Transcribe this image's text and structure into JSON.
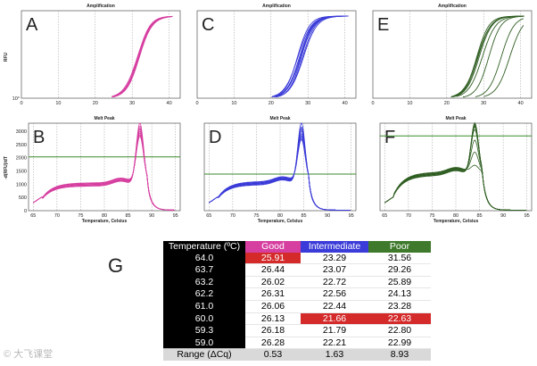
{
  "figure_label": "G",
  "watermark": "© 大飞课堂",
  "colors": {
    "good": "#d63fa0",
    "intermediate": "#3a3bd8",
    "poor": "#2f5e22",
    "threshold": "#3a8a2a"
  },
  "chart_data": [
    {
      "id": "A",
      "type": "line",
      "title": "Amplification",
      "letter": "A",
      "ylabel": "RFU",
      "yticks": [
        "10°"
      ],
      "xticks": [
        "0",
        "10",
        "20",
        "30",
        "40"
      ],
      "xlim": [
        0,
        43
      ],
      "ylim": [
        0,
        1
      ],
      "color": "#d63fa0",
      "series": [
        {
          "name": "64.0",
          "Cq": 25.91
        },
        {
          "name": "63.7",
          "Cq": 26.44
        },
        {
          "name": "63.2",
          "Cq": 26.02
        },
        {
          "name": "62.2",
          "Cq": 26.31
        },
        {
          "name": "61.0",
          "Cq": 26.06
        },
        {
          "name": "60.0",
          "Cq": 26.13
        },
        {
          "name": "59.3",
          "Cq": 26.18
        },
        {
          "name": "59.0",
          "Cq": 26.28
        }
      ]
    },
    {
      "id": "C",
      "type": "line",
      "title": "Amplification",
      "letter": "C",
      "xticks": [
        "0",
        "10",
        "20",
        "30",
        "40"
      ],
      "xlim": [
        0,
        43
      ],
      "ylim": [
        0,
        1
      ],
      "color": "#3a3bd8",
      "series": [
        {
          "name": "64.0",
          "Cq": 23.29
        },
        {
          "name": "63.7",
          "Cq": 23.07
        },
        {
          "name": "63.2",
          "Cq": 22.72
        },
        {
          "name": "62.2",
          "Cq": 22.56
        },
        {
          "name": "61.0",
          "Cq": 22.44
        },
        {
          "name": "60.0",
          "Cq": 21.66
        },
        {
          "name": "59.3",
          "Cq": 21.79
        },
        {
          "name": "59.0",
          "Cq": 22.21
        }
      ]
    },
    {
      "id": "E",
      "type": "line",
      "title": "Amplification",
      "letter": "E",
      "xticks": [
        "0",
        "10",
        "20",
        "30",
        "40"
      ],
      "xlim": [
        0,
        43
      ],
      "ylim": [
        0,
        1
      ],
      "color": "#2f5e22",
      "series": [
        {
          "name": "64.0",
          "Cq": 31.56
        },
        {
          "name": "63.7",
          "Cq": 29.26
        },
        {
          "name": "63.2",
          "Cq": 25.89
        },
        {
          "name": "62.2",
          "Cq": 24.13
        },
        {
          "name": "61.0",
          "Cq": 23.28
        },
        {
          "name": "60.0",
          "Cq": 22.63
        },
        {
          "name": "59.3",
          "Cq": 22.8
        },
        {
          "name": "59.0",
          "Cq": 22.99
        }
      ]
    },
    {
      "id": "B",
      "type": "line",
      "title": "Melt Peak",
      "letter": "B",
      "ylabel": "-d(RFU)/dT",
      "xlabel": "Temperature, Celsius",
      "yticks": [
        "0",
        "500",
        "1000",
        "1500",
        "2000",
        "2500",
        "3000"
      ],
      "xticks": [
        "65",
        "70",
        "75",
        "80",
        "85",
        "90",
        "95"
      ],
      "xlim": [
        64,
        96
      ],
      "ylim": [
        0,
        3300
      ],
      "threshold": 2030,
      "color": "#d63fa0",
      "peak_temp": 87.5,
      "plateau": 800,
      "peaks": [
        3100,
        2980,
        2900,
        2850,
        2780,
        2720,
        2650,
        2600
      ]
    },
    {
      "id": "D",
      "type": "line",
      "title": "Melt Peak",
      "letter": "D",
      "xlabel": "Temperature, Celsius",
      "xticks": [
        "65",
        "70",
        "75",
        "80",
        "85",
        "90",
        "95"
      ],
      "xlim": [
        64,
        96
      ],
      "ylim": [
        0,
        3300
      ],
      "threshold": 1380,
      "color": "#3a3bd8",
      "peak_temp": 84.5,
      "plateau": 850,
      "peaks": [
        3100,
        2950,
        2880,
        2800,
        2700,
        2620,
        2550,
        2480
      ]
    },
    {
      "id": "F",
      "type": "line",
      "title": "Melt Peak",
      "letter": "F",
      "xlabel": "Temperature, Celsius",
      "xticks": [
        "65",
        "70",
        "75",
        "80",
        "85",
        "90",
        "95"
      ],
      "xlim": [
        64,
        96
      ],
      "ylim": [
        0,
        3300
      ],
      "threshold": 2820,
      "color": "#2f5e22",
      "peak_temp": 84.0,
      "plateau": 1200,
      "peaks": [
        3100,
        3050,
        3000,
        2950,
        2850,
        2450,
        2000,
        1500
      ]
    }
  ],
  "table": {
    "headers": [
      "Temperature (ºC)",
      "Good",
      "Intermediate",
      "Poor"
    ],
    "rows": [
      {
        "temp": "64.0",
        "good": "25.91",
        "intermediate": "23.29",
        "poor": "31.56"
      },
      {
        "temp": "63.7",
        "good": "26.44",
        "intermediate": "23.07",
        "poor": "29.26"
      },
      {
        "temp": "63.2",
        "good": "26.02",
        "intermediate": "22.72",
        "poor": "25.89"
      },
      {
        "temp": "62.2",
        "good": "26.31",
        "intermediate": "22.56",
        "poor": "24.13"
      },
      {
        "temp": "61.0",
        "good": "26.06",
        "intermediate": "22.44",
        "poor": "23.28"
      },
      {
        "temp": "60.0",
        "good": "26.13",
        "intermediate": "21.66",
        "poor": "22.63"
      },
      {
        "temp": "59.3",
        "good": "26.18",
        "intermediate": "21.79",
        "poor": "22.80"
      },
      {
        "temp": "59.0",
        "good": "26.28",
        "intermediate": "22.21",
        "poor": "22.99"
      }
    ],
    "highlighted": [
      {
        "row": 0,
        "col": "good"
      },
      {
        "row": 5,
        "col": "intermediate"
      },
      {
        "row": 5,
        "col": "poor"
      }
    ],
    "range": {
      "label": "Range (ΔCq)",
      "good": "0.53",
      "intermediate": "1.63",
      "poor": "8.93"
    }
  }
}
